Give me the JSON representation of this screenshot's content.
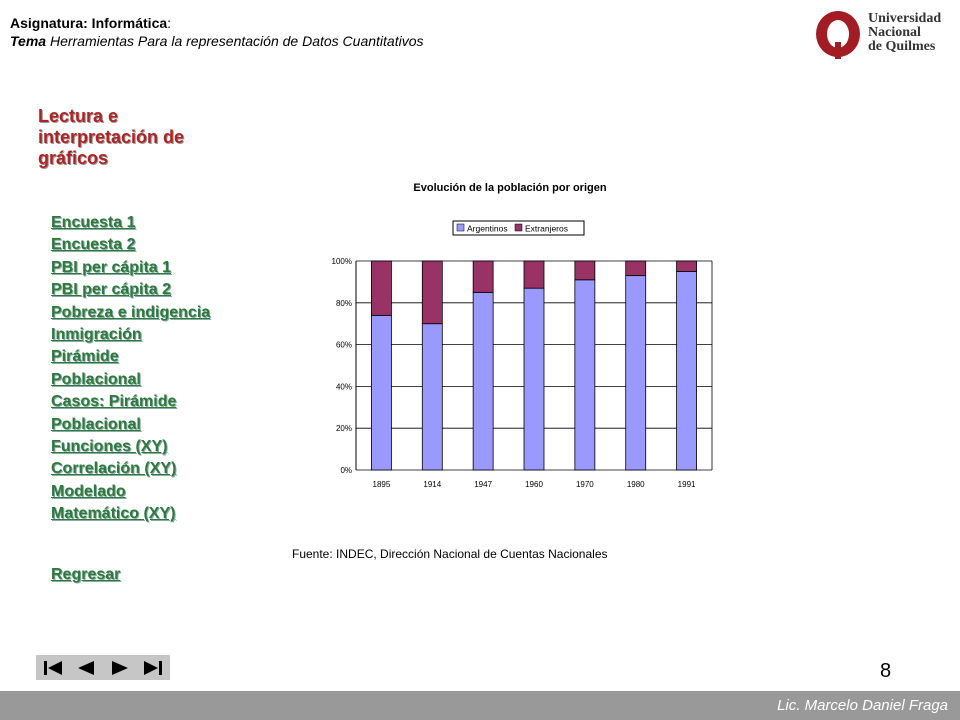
{
  "header": {
    "subject_label": "Asignatura: Informática",
    "subject_colon": ":",
    "topic_label": "Tema",
    "topic_text": " Herramientas Para la representación de Datos Cuantitativos"
  },
  "logo": {
    "line1": "Universidad",
    "line2": "Nacional",
    "line3": "de Quilmes",
    "color": "#a31c24"
  },
  "section_title": "Lectura e interpretación de gráficos",
  "nav": {
    "items": [
      {
        "label": "Encuesta 1"
      },
      {
        "label": "Encuesta 2"
      },
      {
        "label": "PBI per cápita 1"
      },
      {
        "label": "PBI per cápita 2"
      },
      {
        "label": "Pobreza e indigencia"
      },
      {
        "label": "Inmigración"
      },
      {
        "label": "Pirámide Poblacional"
      },
      {
        "label": "Casos: Pirámide Poblacional"
      },
      {
        "label": "Funciones (XY)"
      },
      {
        "label": "Correlación (XY)"
      },
      {
        "label": "Modelado Matemático (XY)"
      }
    ],
    "back_label": "Regresar"
  },
  "chart_data": {
    "type": "bar",
    "stacked": true,
    "percent": true,
    "title": "Evolución de la población por origen",
    "categories": [
      "1895",
      "1914",
      "1947",
      "1960",
      "1970",
      "1980",
      "1991"
    ],
    "series": [
      {
        "name": "Argentinos",
        "color": "#9999ff",
        "values": [
          74,
          70,
          85,
          87,
          91,
          93,
          95
        ]
      },
      {
        "name": "Extranjeros",
        "color": "#993366",
        "values": [
          26,
          30,
          15,
          13,
          9,
          7,
          5
        ]
      }
    ],
    "ylim": [
      0,
      100
    ],
    "yticks": [
      "0%",
      "20%",
      "40%",
      "60%",
      "80%",
      "100%"
    ],
    "legend": "top",
    "grid": true
  },
  "source": "Fuente: INDEC, Dirección Nacional de Cuentas Nacionales",
  "nav_controls": [
    "first-icon",
    "previous-icon",
    "next-icon",
    "last-icon"
  ],
  "page_number": "8",
  "footer": {
    "author": "Lic. Marcelo Daniel Fraga"
  }
}
